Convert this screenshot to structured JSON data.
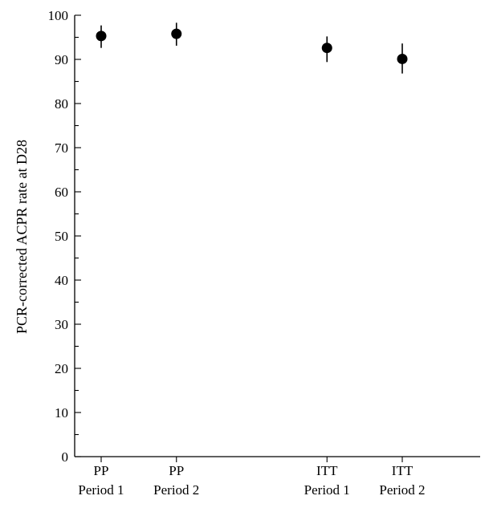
{
  "chart_data": {
    "type": "scatter",
    "ylabel": "PCR-corrected ACPR rate at D28",
    "ylim": [
      0,
      100
    ],
    "y_ticks": [
      "0",
      "10",
      "20",
      "30",
      "40",
      "50",
      "60",
      "70",
      "80",
      "90",
      "100"
    ],
    "y_minor_step": 5,
    "grid": false,
    "legend": "none",
    "marker_color": "#000000",
    "points": [
      {
        "category": "PP Period 1",
        "group": "PP",
        "period": "Period 1",
        "x": 1,
        "y": 95.3,
        "lower": 92.6,
        "upper": 97.7
      },
      {
        "category": "PP Period 2",
        "group": "PP",
        "period": "Period 2",
        "x": 2,
        "y": 95.8,
        "lower": 93.1,
        "upper": 98.3
      },
      {
        "category": "ITT Period 1",
        "group": "ITT",
        "period": "Period 1",
        "x": 4,
        "y": 92.6,
        "lower": 89.4,
        "upper": 95.2
      },
      {
        "category": "ITT Period 2",
        "group": "ITT",
        "period": "Period 2",
        "x": 5,
        "y": 90.1,
        "lower": 86.8,
        "upper": 93.6
      }
    ]
  }
}
